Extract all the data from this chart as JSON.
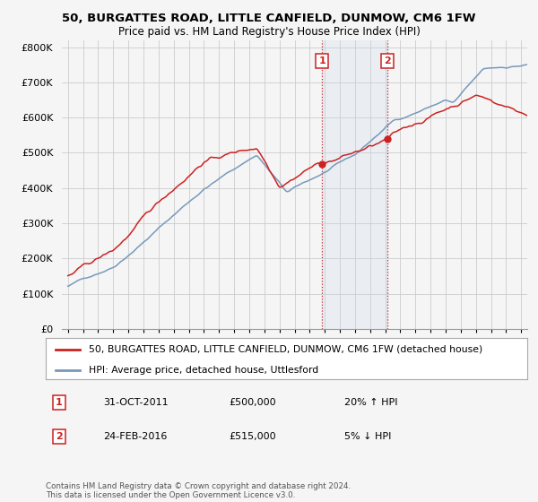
{
  "title": "50, BURGATTES ROAD, LITTLE CANFIELD, DUNMOW, CM6 1FW",
  "subtitle": "Price paid vs. HM Land Registry's House Price Index (HPI)",
  "ylabel_ticks": [
    "£0",
    "£100K",
    "£200K",
    "£300K",
    "£400K",
    "£500K",
    "£600K",
    "£700K",
    "£800K"
  ],
  "ytick_vals": [
    0,
    100000,
    200000,
    300000,
    400000,
    500000,
    600000,
    700000,
    800000
  ],
  "ylim": [
    0,
    820000
  ],
  "hpi_color": "#7799bb",
  "price_color": "#cc2222",
  "transaction1": {
    "date": "31-OCT-2011",
    "price": 500000,
    "label": "1",
    "pct": "20%",
    "dir": "↑",
    "x": 2011.83
  },
  "transaction2": {
    "date": "24-FEB-2016",
    "price": 515000,
    "label": "2",
    "pct": "5%",
    "dir": "↓",
    "x": 2016.12
  },
  "legend_entry1": "50, BURGATTES ROAD, LITTLE CANFIELD, DUNMOW, CM6 1FW (detached house)",
  "legend_entry2": "HPI: Average price, detached house, Uttlesford",
  "footnote": "Contains HM Land Registry data © Crown copyright and database right 2024.\nThis data is licensed under the Open Government Licence v3.0.",
  "background_color": "#f5f5f5",
  "plot_bg_color": "#f5f5f5",
  "grid_color": "#cccccc",
  "shade_color": "#ccddf0"
}
